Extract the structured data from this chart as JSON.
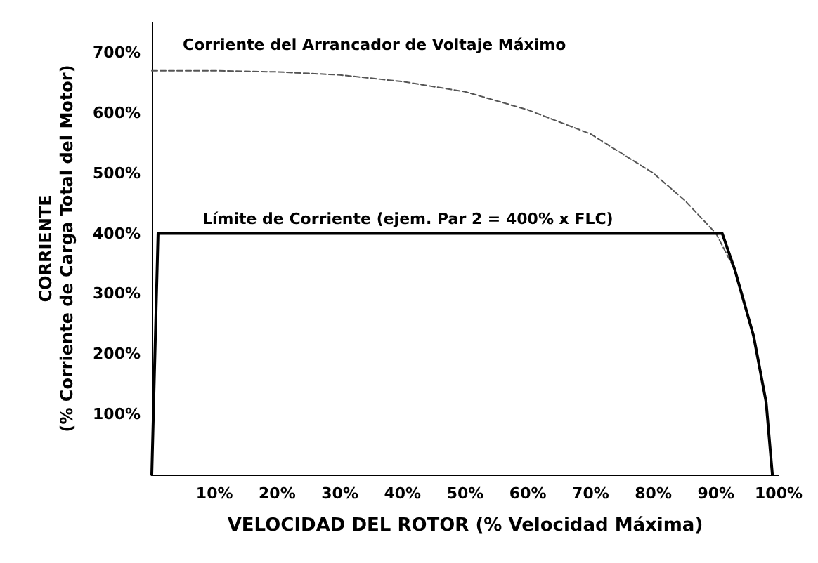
{
  "chart_data": {
    "type": "line",
    "ylabel": "CORRIENTE\n(% Corriente de Carga Total del Motor)",
    "xlabel": "VELOCIDAD DEL ROTOR (% Velocidad Máxima)",
    "xlim": [
      0,
      100
    ],
    "ylim": [
      0,
      750
    ],
    "xticks": [
      {
        "value": 10,
        "label": "10%"
      },
      {
        "value": 20,
        "label": "20%"
      },
      {
        "value": 30,
        "label": "30%"
      },
      {
        "value": 40,
        "label": "40%"
      },
      {
        "value": 50,
        "label": "50%"
      },
      {
        "value": 60,
        "label": "60%"
      },
      {
        "value": 70,
        "label": "70%"
      },
      {
        "value": 80,
        "label": "80%"
      },
      {
        "value": 90,
        "label": "90%"
      },
      {
        "value": 100,
        "label": "100%"
      }
    ],
    "yticks": [
      {
        "value": 100,
        "label": "100%"
      },
      {
        "value": 200,
        "label": "200%"
      },
      {
        "value": 300,
        "label": "300%"
      },
      {
        "value": 400,
        "label": "400%"
      },
      {
        "value": 500,
        "label": "500%"
      },
      {
        "value": 600,
        "label": "600%"
      },
      {
        "value": 700,
        "label": "700%"
      }
    ],
    "grid": false,
    "marker": "none",
    "series": [
      {
        "color": "#555555",
        "line_style": "dashed",
        "x": [
          0,
          10,
          20,
          30,
          40,
          50,
          60,
          70,
          80,
          85,
          90,
          93,
          96,
          98,
          99
        ],
        "values": [
          670,
          670,
          668,
          663,
          652,
          635,
          605,
          565,
          500,
          455,
          400,
          340,
          230,
          120,
          0
        ]
      },
      {
        "color": "#000000",
        "line_style": "solid",
        "x": [
          0,
          1,
          91,
          93,
          96,
          98,
          99
        ],
        "values": [
          0,
          400,
          400,
          340,
          230,
          120,
          0
        ]
      }
    ],
    "annotations": [
      "Corriente del Arrancador de Voltaje Máximo",
      "Límite de Corriente (ejem. Par 2 = 400% x FLC)"
    ]
  }
}
